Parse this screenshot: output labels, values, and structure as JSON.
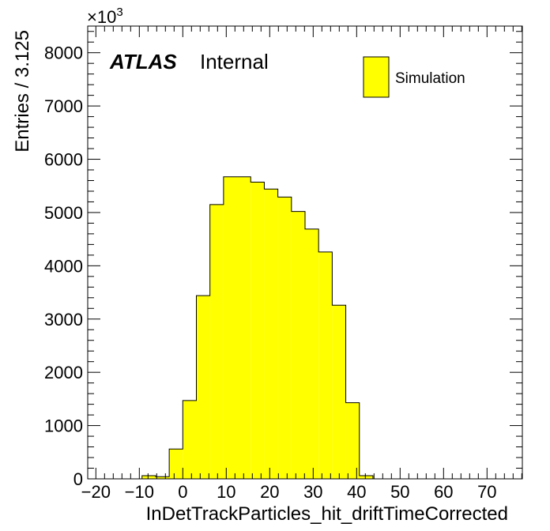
{
  "chart_data": {
    "type": "bar",
    "xlabel": "InDetTrackParticles_hit_driftTimeCorrected",
    "ylabel": "Entries / 3.125",
    "multiplier": "×10",
    "multiplier_exp": "3",
    "atlas_label": "ATLAS",
    "atlas_sublabel": "Internal",
    "legend": [
      {
        "name": "Simulation",
        "color": "#ffff00"
      }
    ],
    "x_ticks": [
      -20,
      -10,
      0,
      10,
      20,
      30,
      40,
      50,
      60,
      70
    ],
    "y_ticks": [
      0,
      1000,
      2000,
      3000,
      4000,
      5000,
      6000,
      7000,
      8000
    ],
    "xlim": [
      -21.875,
      78.125
    ],
    "ylim": [
      0,
      8500
    ],
    "bin_width": 3.125,
    "bin_edges_start": -9.375,
    "values": [
      60,
      40,
      560,
      1470,
      3440,
      5150,
      5670,
      5670,
      5570,
      5440,
      5290,
      5020,
      4690,
      4260,
      3260,
      1430,
      60
    ],
    "grid": false,
    "legend_position": "top-right",
    "fill_color": "#ffff00",
    "edge_color": "#000000"
  }
}
